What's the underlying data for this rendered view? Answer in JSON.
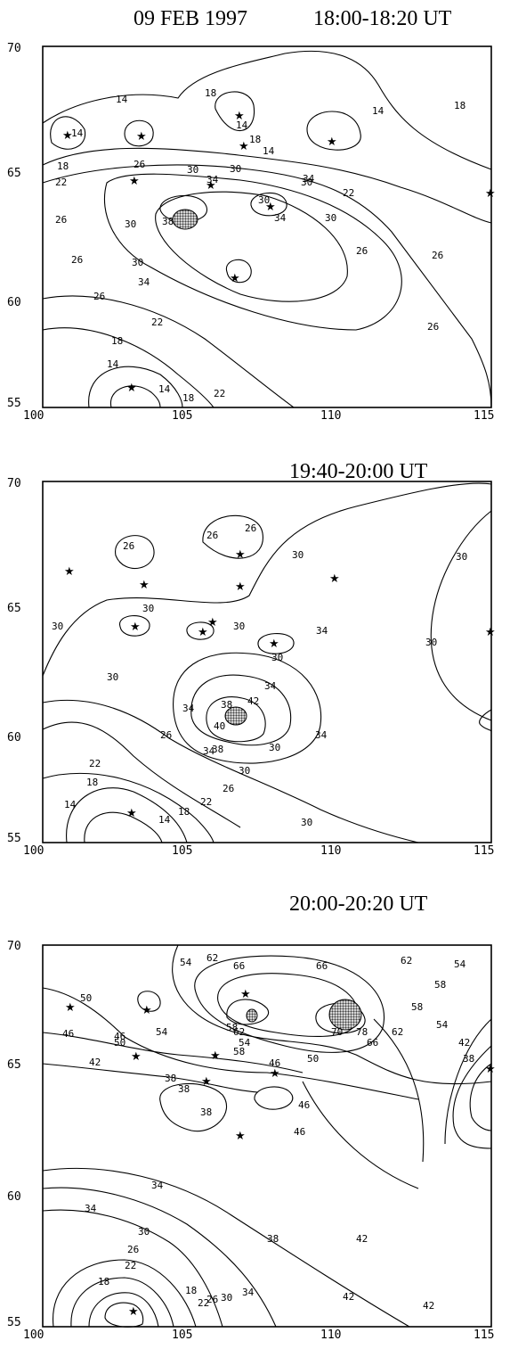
{
  "header": {
    "date": "09 FEB 1997",
    "panel1_time": "18:00-18:20 UT",
    "panel2_time": "19:40-20:00 UT",
    "panel3_time": "20:00-20:20 UT"
  },
  "axes": {
    "x_ticks": [
      "100",
      "105",
      "110",
      "115"
    ],
    "y_ticks": [
      "70",
      "65",
      "60",
      "55"
    ]
  },
  "panel1": {
    "labels": [
      "14",
      "14",
      "18",
      "14",
      "18",
      "14",
      "18",
      "14",
      "18",
      "22",
      "26",
      "26",
      "30",
      "30",
      "34",
      "30",
      "34",
      "38",
      "30",
      "34",
      "30",
      "22",
      "26",
      "26",
      "30",
      "26",
      "34",
      "30",
      "26",
      "26",
      "22",
      "18",
      "14",
      "14",
      "18",
      "22"
    ]
  },
  "panel2": {
    "labels": [
      "26",
      "26",
      "26",
      "30",
      "30",
      "30",
      "30",
      "30",
      "30",
      "34",
      "30",
      "34",
      "38",
      "42",
      "40",
      "38",
      "34",
      "34",
      "30",
      "30",
      "26",
      "22",
      "18",
      "14",
      "14",
      "18",
      "22",
      "26",
      "30",
      "30",
      "34"
    ]
  },
  "panel3": {
    "labels": [
      "62",
      "66",
      "66",
      "62",
      "58",
      "54",
      "50",
      "54",
      "46",
      "46",
      "54",
      "58",
      "42",
      "38",
      "50",
      "54",
      "58",
      "62",
      "70",
      "78",
      "66",
      "62",
      "58",
      "54",
      "50",
      "46",
      "46",
      "42",
      "38",
      "38",
      "34",
      "38",
      "34",
      "30",
      "26",
      "22",
      "18",
      "18",
      "22",
      "26",
      "30",
      "34",
      "38",
      "42",
      "42",
      "46",
      "42"
    ]
  },
  "colors": {
    "ink": "#000000",
    "background": "#ffffff",
    "shade": "#555555"
  }
}
